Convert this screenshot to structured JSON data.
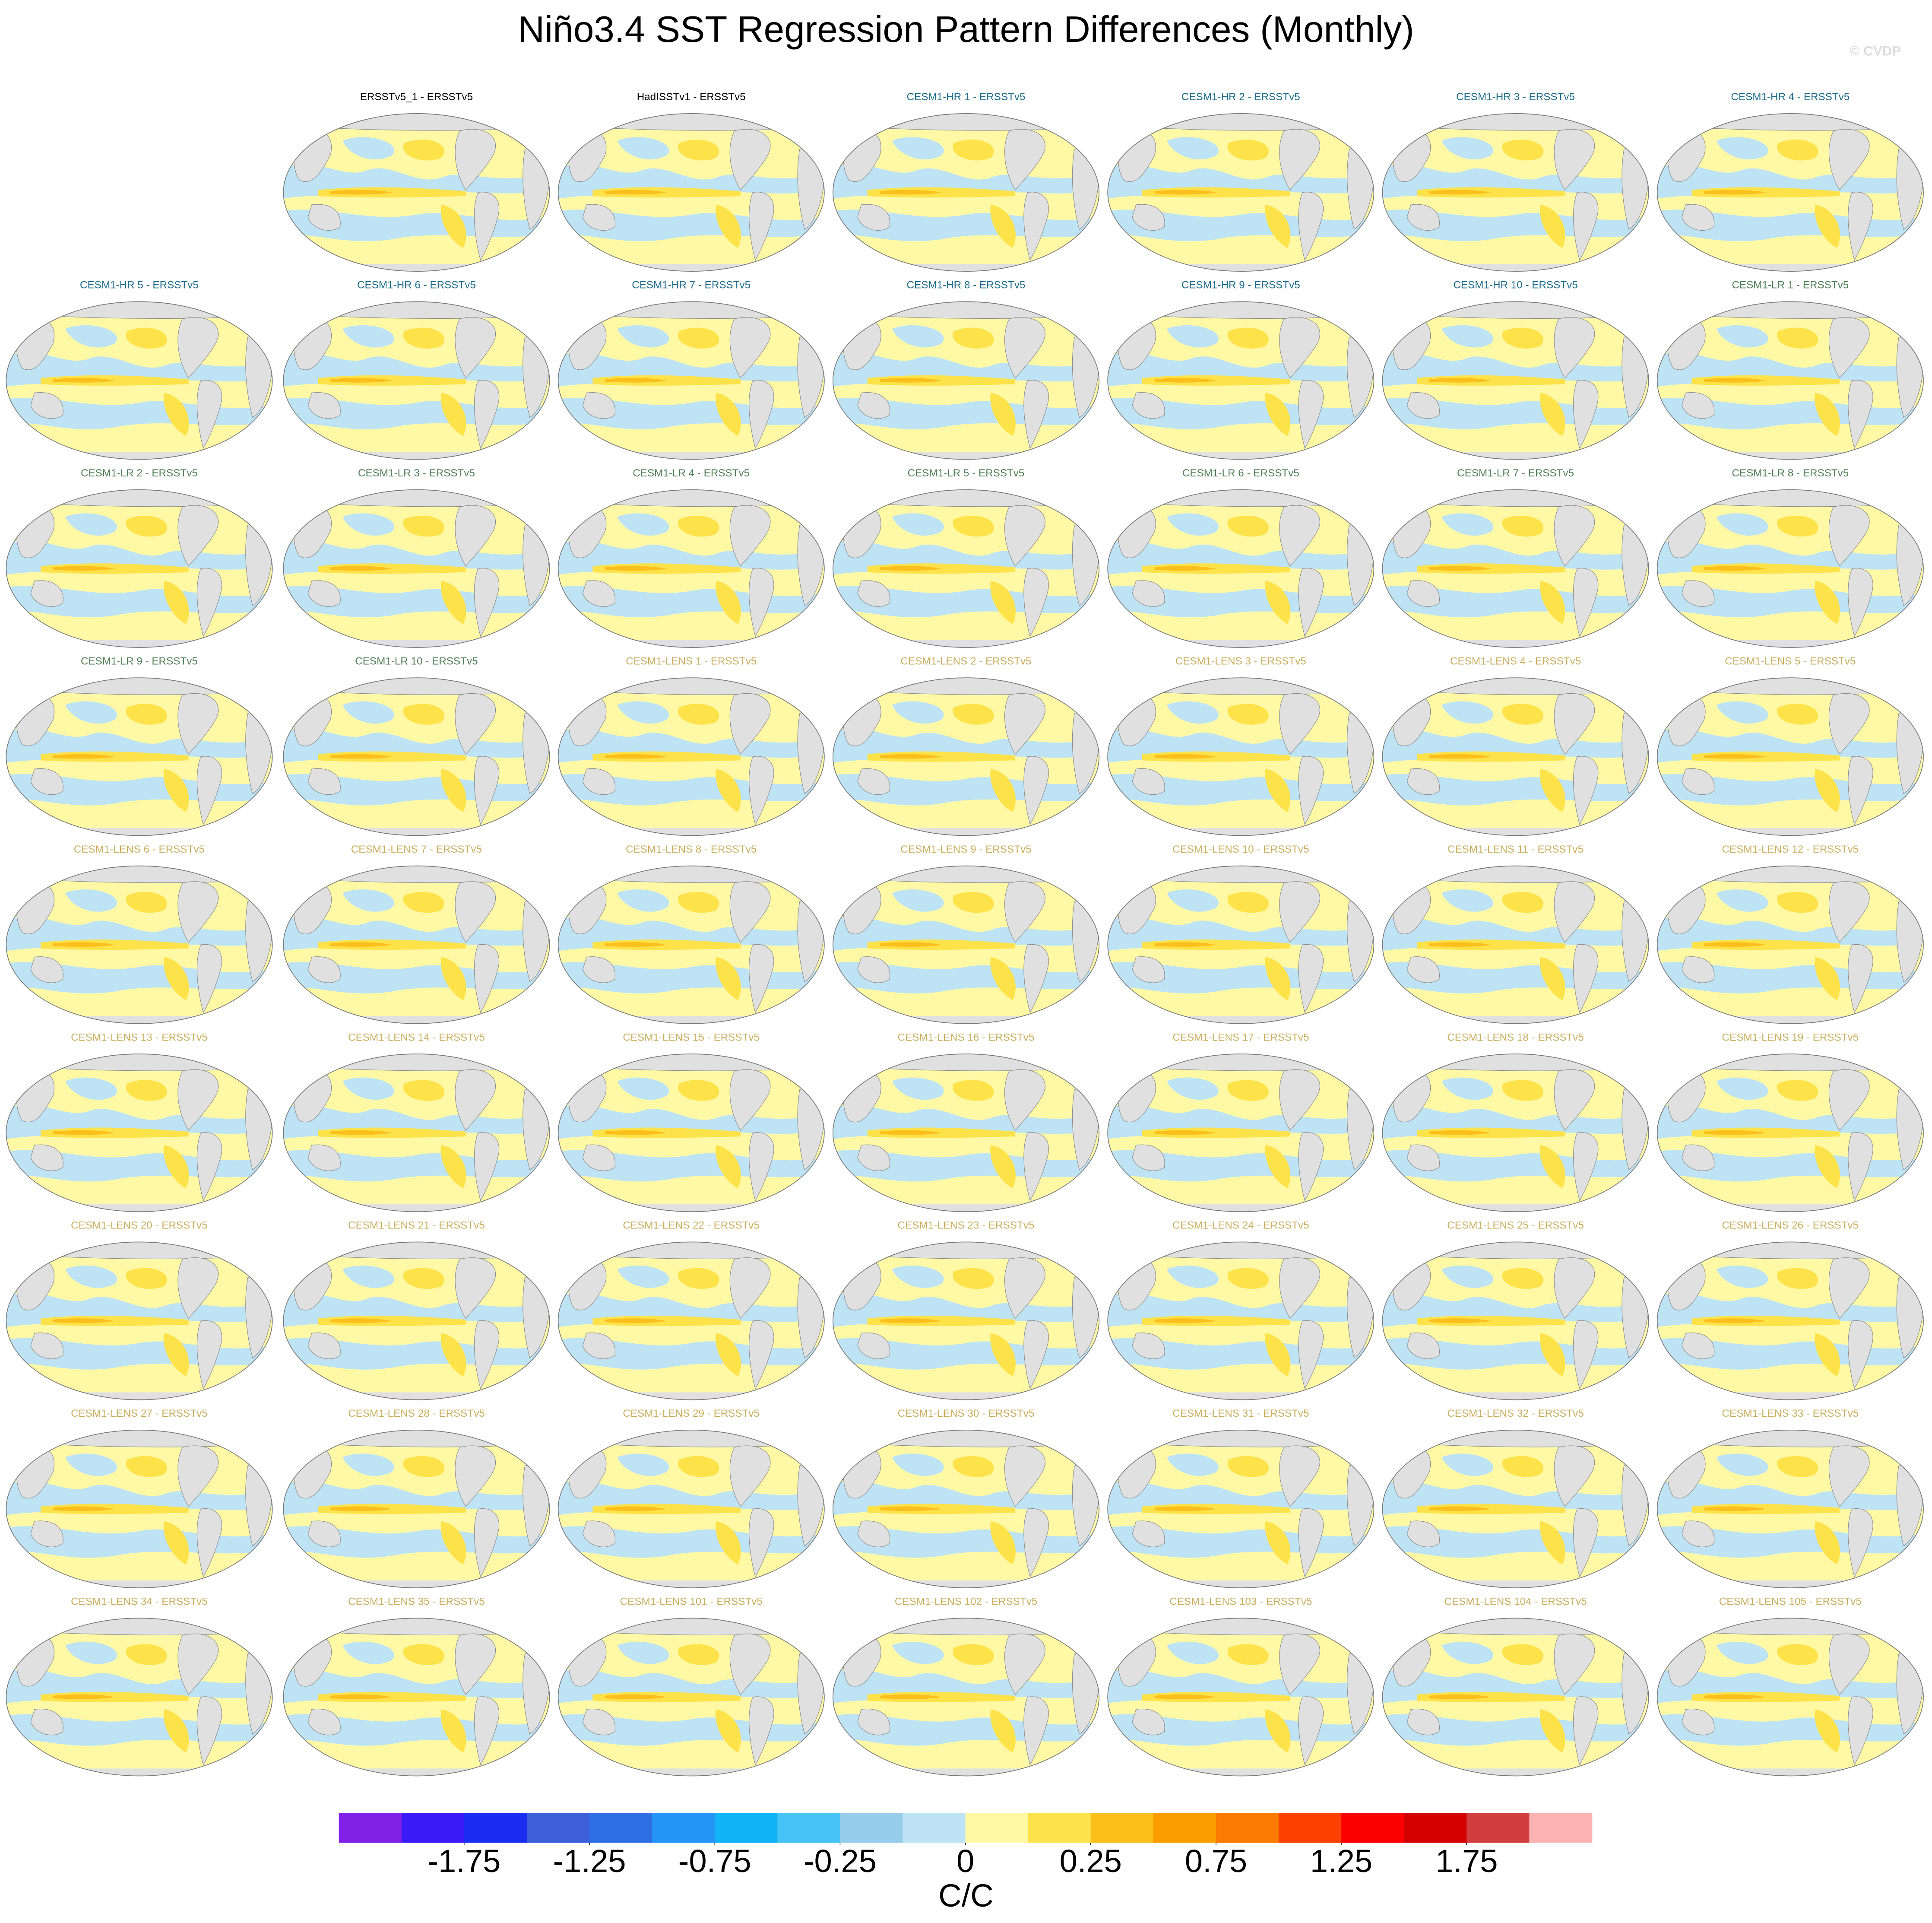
{
  "header": {
    "title": "Niño3.4 SST Regression Pattern Differences (Monthly)",
    "watermark": "© CVDP"
  },
  "panels": [
    {
      "title": "ERSSTv5_1 - ERSSTv5",
      "color": "#000000"
    },
    {
      "title": "HadISSTv1 - ERSSTv5",
      "color": "#000000"
    },
    {
      "title": "CESM1-HR 1 - ERSSTv5",
      "color": "#1f6d8c"
    },
    {
      "title": "CESM1-HR 2 - ERSSTv5",
      "color": "#1f6d8c"
    },
    {
      "title": "CESM1-HR 3 - ERSSTv5",
      "color": "#1f6d8c"
    },
    {
      "title": "CESM1-HR 4 - ERSSTv5",
      "color": "#1f6d8c"
    },
    {
      "title": "CESM1-HR 5 - ERSSTv5",
      "color": "#1f6d8c"
    },
    {
      "title": "CESM1-HR 6 - ERSSTv5",
      "color": "#1f6d8c"
    },
    {
      "title": "CESM1-HR 7 - ERSSTv5",
      "color": "#1f6d8c"
    },
    {
      "title": "CESM1-HR 8 - ERSSTv5",
      "color": "#1f6d8c"
    },
    {
      "title": "CESM1-HR 9 - ERSSTv5",
      "color": "#1f6d8c"
    },
    {
      "title": "CESM1-HR 10 - ERSSTv5",
      "color": "#1f6d8c"
    },
    {
      "title": "CESM1-LR 1 - ERSSTv5",
      "color": "#4f7f55"
    },
    {
      "title": "CESM1-LR 2 - ERSSTv5",
      "color": "#4f7f55"
    },
    {
      "title": "CESM1-LR 3 - ERSSTv5",
      "color": "#4f7f55"
    },
    {
      "title": "CESM1-LR 4 - ERSSTv5",
      "color": "#4f7f55"
    },
    {
      "title": "CESM1-LR 5 - ERSSTv5",
      "color": "#4f7f55"
    },
    {
      "title": "CESM1-LR 6 - ERSSTv5",
      "color": "#4f7f55"
    },
    {
      "title": "CESM1-LR 7 - ERSSTv5",
      "color": "#4f7f55"
    },
    {
      "title": "CESM1-LR 8 - ERSSTv5",
      "color": "#4f7f55"
    },
    {
      "title": "CESM1-LR 9 - ERSSTv5",
      "color": "#4f7f55"
    },
    {
      "title": "CESM1-LR 10 - ERSSTv5",
      "color": "#4f7f55"
    },
    {
      "title": "CESM1-LENS 1 - ERSSTv5",
      "color": "#c9ae5e"
    },
    {
      "title": "CESM1-LENS 2 - ERSSTv5",
      "color": "#c9ae5e"
    },
    {
      "title": "CESM1-LENS 3 - ERSSTv5",
      "color": "#c9ae5e"
    },
    {
      "title": "CESM1-LENS 4 - ERSSTv5",
      "color": "#c9ae5e"
    },
    {
      "title": "CESM1-LENS 5 - ERSSTv5",
      "color": "#c9ae5e"
    },
    {
      "title": "CESM1-LENS 6 - ERSSTv5",
      "color": "#c9ae5e"
    },
    {
      "title": "CESM1-LENS 7 - ERSSTv5",
      "color": "#c9ae5e"
    },
    {
      "title": "CESM1-LENS 8 - ERSSTv5",
      "color": "#c9ae5e"
    },
    {
      "title": "CESM1-LENS 9 - ERSSTv5",
      "color": "#c9ae5e"
    },
    {
      "title": "CESM1-LENS 10 - ERSSTv5",
      "color": "#c9ae5e"
    },
    {
      "title": "CESM1-LENS 11 - ERSSTv5",
      "color": "#c9ae5e"
    },
    {
      "title": "CESM1-LENS 12 - ERSSTv5",
      "color": "#c9ae5e"
    },
    {
      "title": "CESM1-LENS 13 - ERSSTv5",
      "color": "#c9ae5e"
    },
    {
      "title": "CESM1-LENS 14 - ERSSTv5",
      "color": "#c9ae5e"
    },
    {
      "title": "CESM1-LENS 15 - ERSSTv5",
      "color": "#c9ae5e"
    },
    {
      "title": "CESM1-LENS 16 - ERSSTv5",
      "color": "#c9ae5e"
    },
    {
      "title": "CESM1-LENS 17 - ERSSTv5",
      "color": "#c9ae5e"
    },
    {
      "title": "CESM1-LENS 18 - ERSSTv5",
      "color": "#c9ae5e"
    },
    {
      "title": "CESM1-LENS 19 - ERSSTv5",
      "color": "#c9ae5e"
    },
    {
      "title": "CESM1-LENS 20 - ERSSTv5",
      "color": "#c9ae5e"
    },
    {
      "title": "CESM1-LENS 21 - ERSSTv5",
      "color": "#c9ae5e"
    },
    {
      "title": "CESM1-LENS 22 - ERSSTv5",
      "color": "#c9ae5e"
    },
    {
      "title": "CESM1-LENS 23 - ERSSTv5",
      "color": "#c9ae5e"
    },
    {
      "title": "CESM1-LENS 24 - ERSSTv5",
      "color": "#c9ae5e"
    },
    {
      "title": "CESM1-LENS 25 - ERSSTv5",
      "color": "#c9ae5e"
    },
    {
      "title": "CESM1-LENS 26 - ERSSTv5",
      "color": "#c9ae5e"
    },
    {
      "title": "CESM1-LENS 27 - ERSSTv5",
      "color": "#c9ae5e"
    },
    {
      "title": "CESM1-LENS 28 - ERSSTv5",
      "color": "#c9ae5e"
    },
    {
      "title": "CESM1-LENS 29 - ERSSTv5",
      "color": "#c9ae5e"
    },
    {
      "title": "CESM1-LENS 30 - ERSSTv5",
      "color": "#c9ae5e"
    },
    {
      "title": "CESM1-LENS 31 - ERSSTv5",
      "color": "#c9ae5e"
    },
    {
      "title": "CESM1-LENS 32 - ERSSTv5",
      "color": "#c9ae5e"
    },
    {
      "title": "CESM1-LENS 33 - ERSSTv5",
      "color": "#c9ae5e"
    },
    {
      "title": "CESM1-LENS 34 - ERSSTv5",
      "color": "#c9ae5e"
    },
    {
      "title": "CESM1-LENS 35 - ERSSTv5",
      "color": "#c9ae5e"
    },
    {
      "title": "CESM1-LENS 101 - ERSSTv5",
      "color": "#c9ae5e"
    },
    {
      "title": "CESM1-LENS 102 - ERSSTv5",
      "color": "#c9ae5e"
    },
    {
      "title": "CESM1-LENS 103 - ERSSTv5",
      "color": "#c9ae5e"
    },
    {
      "title": "CESM1-LENS 104 - ERSSTv5",
      "color": "#c9ae5e"
    },
    {
      "title": "CESM1-LENS 105 - ERSSTv5",
      "color": "#c9ae5e"
    }
  ],
  "colorbar": {
    "colors": [
      "#8121e8",
      "#3b1af5",
      "#1a2df0",
      "#3d5fd8",
      "#2f6fe6",
      "#2594f7",
      "#0fb4f7",
      "#47c4f7",
      "#95cdea",
      "#bde3f5",
      "#fff9a6",
      "#fde24a",
      "#fbbf1c",
      "#fb9c00",
      "#fb7a00",
      "#fb4000",
      "#fb0000",
      "#d40000",
      "#d23d3d",
      "#fdb3b3"
    ],
    "ticks": [
      -1.75,
      -1.25,
      -0.75,
      -0.25,
      0,
      0.25,
      0.75,
      1.25,
      1.75
    ],
    "label": "C/C"
  }
}
